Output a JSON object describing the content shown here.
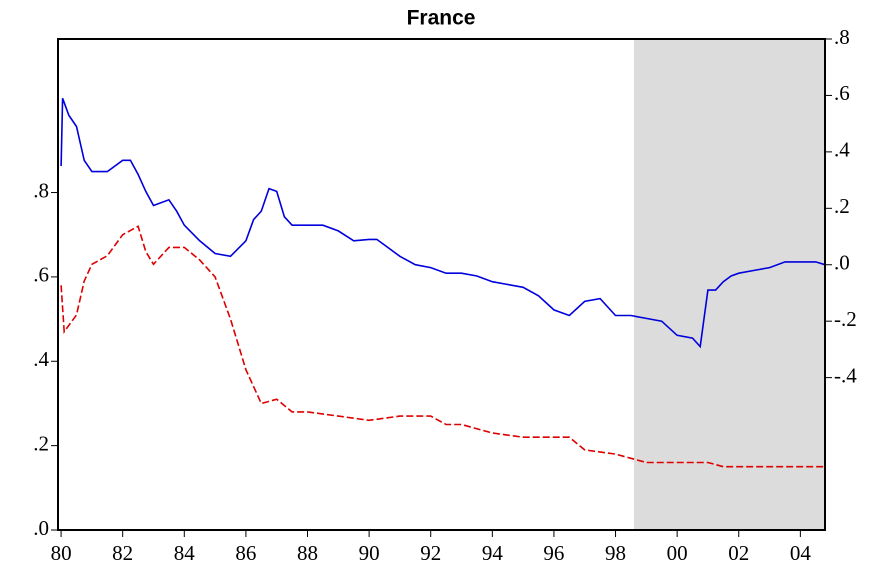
{
  "chart_data": {
    "type": "line",
    "title": "France",
    "xlim": [
      1979.9,
      2004.8
    ],
    "xticks": [
      {
        "value": 1980,
        "label": "80"
      },
      {
        "value": 1982,
        "label": "82"
      },
      {
        "value": 1984,
        "label": "84"
      },
      {
        "value": 1986,
        "label": "86"
      },
      {
        "value": 1988,
        "label": "88"
      },
      {
        "value": 1990,
        "label": "90"
      },
      {
        "value": 1992,
        "label": "92"
      },
      {
        "value": 1994,
        "label": "94"
      },
      {
        "value": 1996,
        "label": "96"
      },
      {
        "value": 1998,
        "label": "98"
      },
      {
        "value": 2000,
        "label": "00"
      },
      {
        "value": 2002,
        "label": "02"
      },
      {
        "value": 2004,
        "label": "04"
      }
    ],
    "ylim": [
      0,
      1.164
    ],
    "yticks": [
      {
        "value": 0,
        "label": ".0"
      },
      {
        "value": 0.2,
        "label": ".2"
      },
      {
        "value": 0.4,
        "label": ".4"
      },
      {
        "value": 0.6,
        "label": ".6"
      },
      {
        "value": 0.8,
        "label": ".8"
      }
    ],
    "y2lim": [
      -0.94,
      0.8
    ],
    "y2ticks": [
      {
        "value": -0.4,
        "label": "-.4"
      },
      {
        "value": -0.2,
        "label": "-.2"
      },
      {
        "value": 0,
        "label": ".0"
      },
      {
        "value": 0.2,
        "label": ".2"
      },
      {
        "value": 0.4,
        "label": ".4"
      },
      {
        "value": 0.6,
        "label": ".6"
      },
      {
        "value": 0.8,
        "label": ".8"
      }
    ],
    "shaded_region": [
      1998.6,
      2004.8
    ],
    "shade_color": "#dcdcdc",
    "series": [
      {
        "color": "#0000dd",
        "axis": "y2",
        "dashed": false,
        "x": [
          1980,
          1980.05,
          1980.25,
          1980.5,
          1980.75,
          1981,
          1981.5,
          1982,
          1982.25,
          1982.5,
          1982.75,
          1983,
          1983.5,
          1983.75,
          1984,
          1984.5,
          1985,
          1985.5,
          1986,
          1986.25,
          1986.5,
          1986.75,
          1987,
          1987.25,
          1987.5,
          1988,
          1988.5,
          1989,
          1989.5,
          1990,
          1990.25,
          1990.5,
          1991,
          1991.5,
          1992,
          1992.5,
          1993,
          1993.5,
          1994,
          1994.5,
          1995,
          1995.5,
          1996,
          1996.5,
          1997,
          1997.5,
          1998,
          1998.5,
          1999,
          1999.5,
          2000,
          2000.5,
          2000.75,
          2001,
          2001.25,
          2001.5,
          2001.75,
          2002,
          2002.5,
          2003,
          2003.5,
          2004,
          2004.5,
          2004.8
        ],
        "values": [
          0.35,
          0.59,
          0.53,
          0.49,
          0.37,
          0.33,
          0.33,
          0.37,
          0.37,
          0.32,
          0.26,
          0.21,
          0.23,
          0.19,
          0.14,
          0.085,
          0.04,
          0.03,
          0.085,
          0.16,
          0.19,
          0.27,
          0.26,
          0.17,
          0.14,
          0.14,
          0.14,
          0.12,
          0.085,
          0.09,
          0.09,
          0.07,
          0.03,
          0.0,
          -0.01,
          -0.03,
          -0.03,
          -0.04,
          -0.06,
          -0.07,
          -0.08,
          -0.11,
          -0.16,
          -0.18,
          -0.13,
          -0.12,
          -0.18,
          -0.18,
          -0.19,
          -0.2,
          -0.25,
          -0.26,
          -0.29,
          -0.09,
          -0.09,
          -0.06,
          -0.04,
          -0.03,
          -0.02,
          -0.01,
          0.01,
          0.01,
          0.01,
          0.0
        ]
      },
      {
        "color": "#dd0000",
        "axis": "y",
        "dashed": true,
        "x": [
          1980,
          1980.1,
          1980.5,
          1980.75,
          1981,
          1981.5,
          1982,
          1982.5,
          1982.75,
          1983,
          1983.5,
          1984,
          1984.5,
          1985,
          1985.5,
          1986,
          1986.5,
          1987,
          1987.5,
          1988,
          1989,
          1990,
          1991,
          1992,
          1992.5,
          1993,
          1994,
          1995,
          1996,
          1996.5,
          1997,
          1998,
          1998.5,
          1999,
          2000,
          2000.5,
          2001,
          2001.5,
          2002,
          2003,
          2004,
          2004.8
        ],
        "values": [
          0.58,
          0.47,
          0.51,
          0.59,
          0.63,
          0.65,
          0.7,
          0.72,
          0.66,
          0.63,
          0.67,
          0.67,
          0.64,
          0.6,
          0.5,
          0.38,
          0.3,
          0.31,
          0.28,
          0.28,
          0.27,
          0.26,
          0.27,
          0.27,
          0.25,
          0.25,
          0.23,
          0.22,
          0.22,
          0.22,
          0.19,
          0.18,
          0.17,
          0.16,
          0.16,
          0.16,
          0.16,
          0.15,
          0.15,
          0.15,
          0.15,
          0.15
        ]
      }
    ]
  }
}
